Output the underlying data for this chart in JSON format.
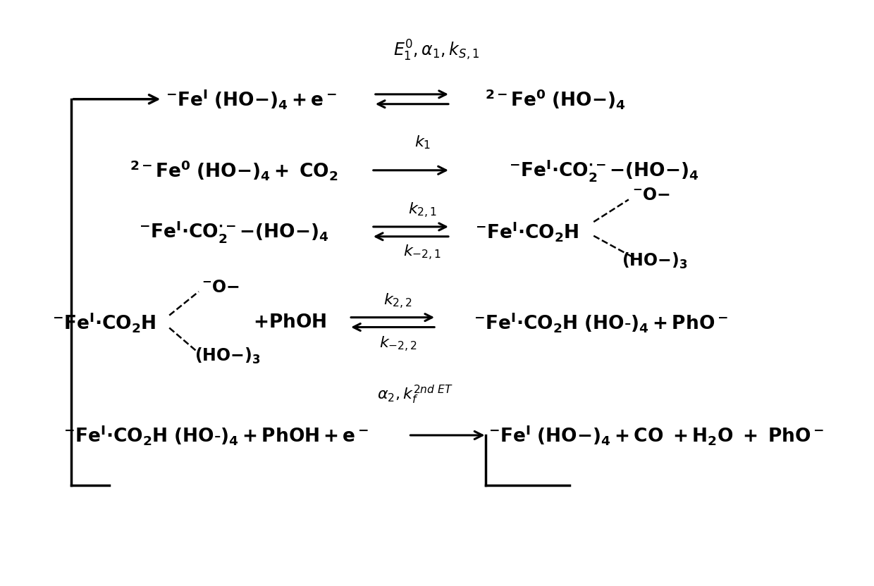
{
  "figsize": [
    12.4,
    8.32
  ],
  "dpi": 100,
  "bg_color": "#ffffff"
}
